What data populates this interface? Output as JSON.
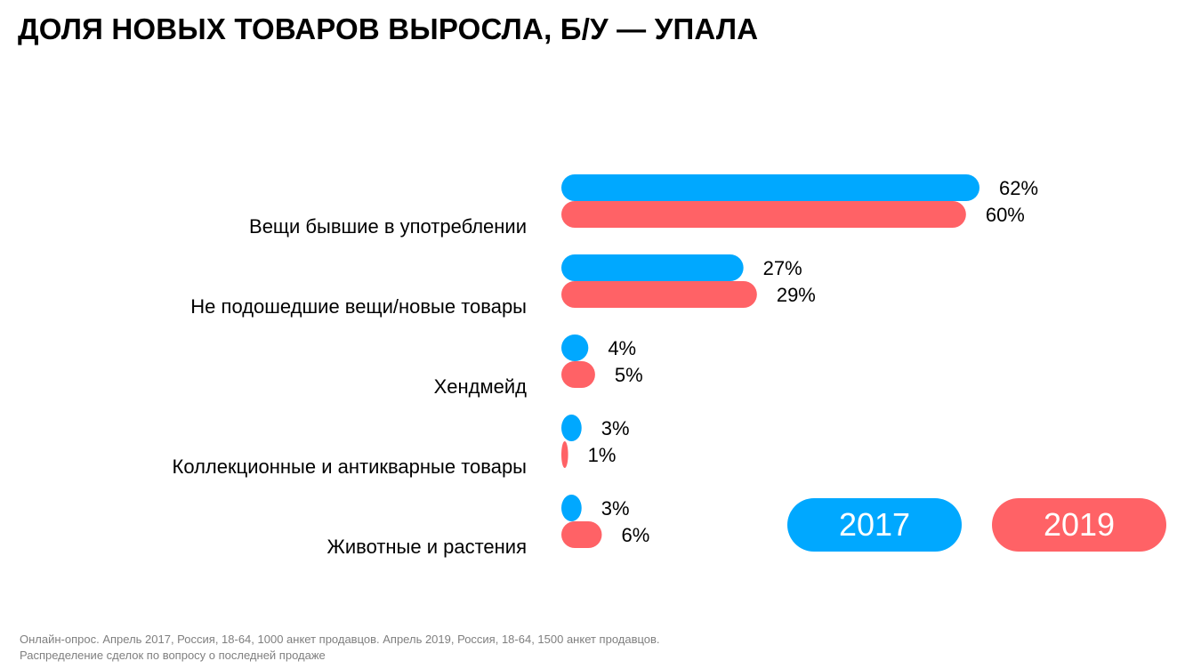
{
  "title": "ДОЛЯ НОВЫХ ТОВАРОВ ВЫРОСЛА, Б/У — УПАЛА",
  "colors": {
    "series_2017": "#00A8FF",
    "series_2019": "#FF6266"
  },
  "legend": [
    {
      "label": "2017",
      "color": "#00A8FF"
    },
    {
      "label": "2019",
      "color": "#FF6266"
    }
  ],
  "footnote": {
    "line1": "Онлайн-опрос. Апрель 2017, Россия, 18-64, 1000 анкет продавцов. Апрель 2019, Россия, 18-64, 1500 анкет продавцов.",
    "line2": "Распределение сделок по вопросу о последней продаже"
  },
  "chart_data": {
    "type": "bar",
    "orientation": "horizontal",
    "title": "ДОЛЯ НОВЫХ ТОВАРОВ ВЫРОСЛА, Б/У — УПАЛА",
    "categories": [
      "Вещи бывшие в употреблении",
      "Не подошедшие вещи/новые товары",
      "Хендмейд",
      "Коллекционные и антикварные товары",
      "Животные и растения"
    ],
    "series": [
      {
        "name": "2017",
        "values": [
          62,
          27,
          4,
          3,
          3
        ]
      },
      {
        "name": "2019",
        "values": [
          60,
          29,
          5,
          1,
          6
        ]
      }
    ],
    "value_suffix": "%",
    "xlim": [
      0,
      62
    ],
    "grid": false,
    "legend_position": "bottom-right"
  }
}
